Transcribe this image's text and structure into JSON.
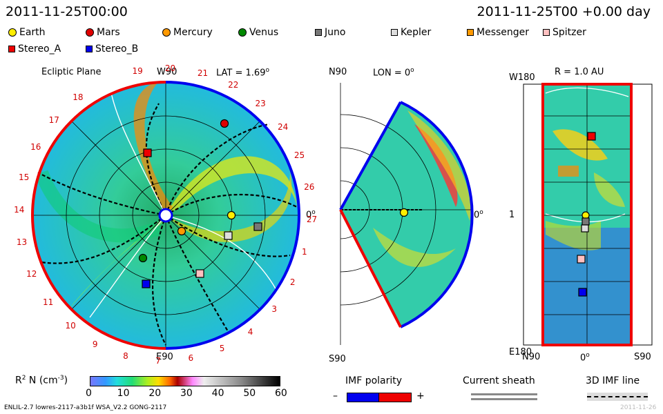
{
  "header": {
    "date_left": "2011-11-25T00:00",
    "date_right": "2011-11-25T00 +0.00 day"
  },
  "legend": {
    "items": [
      {
        "label": "Earth",
        "shape": "circle",
        "color": "#ffee00"
      },
      {
        "label": "Mars",
        "shape": "circle",
        "color": "#e00000"
      },
      {
        "label": "Mercury",
        "shape": "circle",
        "color": "#ff9900"
      },
      {
        "label": "Venus",
        "shape": "circle",
        "color": "#008800"
      },
      {
        "label": "Juno",
        "shape": "square",
        "color": "#777777"
      },
      {
        "label": "Kepler",
        "shape": "square",
        "color": "#dddddd"
      },
      {
        "label": "Messenger",
        "shape": "square",
        "color": "#ff9900"
      },
      {
        "label": "Spitzer",
        "shape": "square",
        "color": "#ffc0c0"
      },
      {
        "label": "Stereo_A",
        "shape": "square",
        "color": "#ee0000"
      },
      {
        "label": "Stereo_B",
        "shape": "square",
        "color": "#0000ee"
      }
    ]
  },
  "panel1": {
    "title": "Ecliptic Plane",
    "lat": "LAT = 1.69",
    "deg": "o",
    "top": "W90",
    "bottom": "E90",
    "right": "0",
    "longitudes": [
      "19",
      "20",
      "21",
      "22",
      "23",
      "24",
      "25",
      "26",
      "27",
      "1",
      "2",
      "3",
      "4",
      "5",
      "6",
      "7",
      "8",
      "9",
      "10",
      "11",
      "12",
      "13",
      "14",
      "15",
      "16",
      "17",
      "18"
    ]
  },
  "panel2": {
    "top": "N90",
    "lon": "LON = 0",
    "deg": "o",
    "bottom": "S90",
    "right": "0"
  },
  "panel3": {
    "r": "R = 1.0 AU",
    "tl": "W180",
    "ml": "1",
    "bl": "E180",
    "bottom_left": "N90",
    "bottom_mid": "0",
    "bottom_right": "S90"
  },
  "colorbar": {
    "label_main": "R",
    "label_sup": "2",
    "label_rest": " N (cm",
    "label_exp": "-3",
    "label_end": ")",
    "ticks": [
      "0",
      "10",
      "20",
      "30",
      "40",
      "50",
      "60"
    ]
  },
  "imf": {
    "title": "IMF polarity",
    "minus": "–",
    "plus": "+",
    "sheath": "Current sheath",
    "line3d": "3D IMF line"
  },
  "footer": {
    "left": "ENLIL-2.7 lowres-2117-a3b1f WSA_V2.2 GONG-2117",
    "right": "2011-11-26"
  },
  "colors": {
    "stereo_a": "#ee0000",
    "stereo_b": "#0000ee"
  }
}
